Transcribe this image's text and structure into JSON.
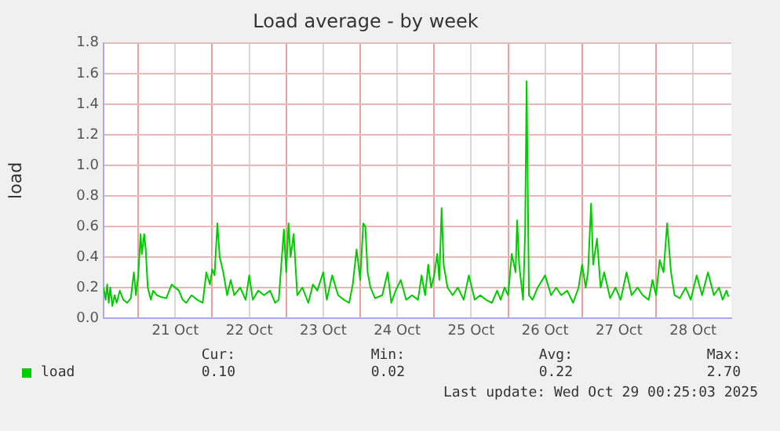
{
  "chart_data": {
    "type": "line",
    "title": "Load average - by week",
    "ylabel": "load",
    "x": [
      "2025-10-20T12:45",
      "2025-10-20T13:25",
      "2025-10-20T13:55",
      "2025-10-20T14:25",
      "2025-10-20T14:55",
      "2025-10-20T15:35",
      "2025-10-20T16:20",
      "2025-10-20T17:00",
      "2025-10-20T18:00",
      "2025-10-20T19:10",
      "2025-10-20T20:25",
      "2025-10-20T21:35",
      "2025-10-20T22:35",
      "2025-10-20T23:15",
      "2025-10-21T00:00",
      "2025-10-21T00:45",
      "2025-10-21T01:10",
      "2025-10-21T01:55",
      "2025-10-21T02:25",
      "2025-10-21T03:05",
      "2025-10-21T04:05",
      "2025-10-21T04:50",
      "2025-10-21T06:00",
      "2025-10-21T07:10",
      "2025-10-21T09:05",
      "2025-10-21T10:50",
      "2025-10-21T13:10",
      "2025-10-21T14:25",
      "2025-10-21T15:35",
      "2025-10-21T17:15",
      "2025-10-21T19:10",
      "2025-10-21T20:55",
      "2025-10-21T22:05",
      "2025-10-21T23:15",
      "2025-10-22T00:00",
      "2025-10-22T00:45",
      "2025-10-22T01:40",
      "2025-10-22T02:25",
      "2025-10-22T03:35",
      "2025-10-22T04:50",
      "2025-10-22T06:00",
      "2025-10-22T07:10",
      "2025-10-22T09:05",
      "2025-10-22T10:50",
      "2025-10-22T12:00",
      "2025-10-22T13:10",
      "2025-10-22T14:55",
      "2025-10-22T16:50",
      "2025-10-22T18:45",
      "2025-10-22T20:25",
      "2025-10-22T21:35",
      "2025-10-22T22:35",
      "2025-10-22T23:15",
      "2025-10-23T00:00",
      "2025-10-23T00:45",
      "2025-10-23T01:25",
      "2025-10-23T02:25",
      "2025-10-23T03:35",
      "2025-10-23T05:15",
      "2025-10-23T07:10",
      "2025-10-23T08:40",
      "2025-10-23T10:05",
      "2025-10-23T12:00",
      "2025-10-23T13:10",
      "2025-10-23T14:55",
      "2025-10-23T16:50",
      "2025-10-23T18:45",
      "2025-10-23T20:25",
      "2025-10-23T21:35",
      "2025-10-23T22:50",
      "2025-10-24T00:00",
      "2025-10-24T01:00",
      "2025-10-24T01:40",
      "2025-10-24T02:25",
      "2025-10-24T03:20",
      "2025-10-24T04:50",
      "2025-10-24T07:10",
      "2025-10-24T08:55",
      "2025-10-24T10:05",
      "2025-10-24T11:30",
      "2025-10-24T13:10",
      "2025-10-24T14:55",
      "2025-10-24T16:50",
      "2025-10-24T18:45",
      "2025-10-24T19:55",
      "2025-10-24T21:05",
      "2025-10-24T22:05",
      "2025-10-24T23:00",
      "2025-10-25T00:00",
      "2025-10-25T01:00",
      "2025-10-25T01:40",
      "2025-10-25T02:25",
      "2025-10-25T03:05",
      "2025-10-25T04:20",
      "2025-10-25T06:00",
      "2025-10-25T07:40",
      "2025-10-25T09:35",
      "2025-10-25T11:15",
      "2025-10-25T13:10",
      "2025-10-25T14:55",
      "2025-10-25T16:50",
      "2025-10-25T18:45",
      "2025-10-25T20:25",
      "2025-10-25T21:35",
      "2025-10-25T22:50",
      "2025-10-26T00:00",
      "2025-10-26T01:10",
      "2025-10-26T02:25",
      "2025-10-26T02:55",
      "2025-10-26T03:35",
      "2025-10-26T04:50",
      "2025-10-26T05:30",
      "2025-10-26T06:00",
      "2025-10-26T06:45",
      "2025-10-26T07:55",
      "2025-10-26T09:35",
      "2025-10-26T12:00",
      "2025-10-26T13:55",
      "2025-10-26T15:35",
      "2025-10-26T17:15",
      "2025-10-26T19:10",
      "2025-10-26T21:05",
      "2025-10-26T22:50",
      "2025-10-27T00:00",
      "2025-10-27T01:10",
      "2025-10-27T01:55",
      "2025-10-27T02:55",
      "2025-10-27T03:35",
      "2025-10-27T04:50",
      "2025-10-27T06:00",
      "2025-10-27T07:10",
      "2025-10-27T09:05",
      "2025-10-27T10:50",
      "2025-10-27T12:30",
      "2025-10-27T14:25",
      "2025-10-27T16:05",
      "2025-10-27T18:00",
      "2025-10-27T19:40",
      "2025-10-27T21:35",
      "2025-10-27T22:50",
      "2025-10-28T00:00",
      "2025-10-28T01:10",
      "2025-10-28T02:25",
      "2025-10-28T03:35",
      "2025-10-28T04:50",
      "2025-10-28T06:00",
      "2025-10-28T07:40",
      "2025-10-28T09:35",
      "2025-10-28T11:15",
      "2025-10-28T13:10",
      "2025-10-28T14:55",
      "2025-10-28T16:50",
      "2025-10-28T18:45",
      "2025-10-28T20:25",
      "2025-10-28T21:35",
      "2025-10-28T22:50",
      "2025-10-28T23:30"
    ],
    "series": [
      {
        "name": "load",
        "color": "#00cc00",
        "values": [
          0.2,
          0.12,
          0.22,
          0.1,
          0.2,
          0.08,
          0.15,
          0.1,
          0.18,
          0.12,
          0.1,
          0.13,
          0.3,
          0.15,
          0.28,
          0.55,
          0.42,
          0.55,
          0.45,
          0.2,
          0.12,
          0.18,
          0.15,
          0.14,
          0.13,
          0.22,
          0.18,
          0.12,
          0.1,
          0.15,
          0.12,
          0.1,
          0.3,
          0.22,
          0.32,
          0.28,
          0.62,
          0.4,
          0.3,
          0.15,
          0.25,
          0.15,
          0.2,
          0.12,
          0.28,
          0.12,
          0.18,
          0.15,
          0.18,
          0.1,
          0.12,
          0.4,
          0.58,
          0.3,
          0.62,
          0.4,
          0.55,
          0.15,
          0.2,
          0.1,
          0.22,
          0.18,
          0.3,
          0.12,
          0.28,
          0.15,
          0.12,
          0.1,
          0.22,
          0.45,
          0.25,
          0.62,
          0.6,
          0.3,
          0.2,
          0.13,
          0.15,
          0.3,
          0.1,
          0.18,
          0.25,
          0.12,
          0.15,
          0.12,
          0.28,
          0.15,
          0.35,
          0.2,
          0.28,
          0.42,
          0.25,
          0.72,
          0.35,
          0.2,
          0.15,
          0.2,
          0.12,
          0.28,
          0.12,
          0.15,
          0.12,
          0.1,
          0.18,
          0.12,
          0.2,
          0.15,
          0.42,
          0.3,
          0.64,
          0.35,
          0.12,
          0.55,
          1.55,
          0.15,
          0.12,
          0.2,
          0.28,
          0.15,
          0.2,
          0.15,
          0.18,
          0.1,
          0.2,
          0.35,
          0.2,
          0.3,
          0.75,
          0.35,
          0.52,
          0.2,
          0.3,
          0.13,
          0.2,
          0.12,
          0.3,
          0.15,
          0.2,
          0.15,
          0.12,
          0.25,
          0.15,
          0.38,
          0.3,
          0.62,
          0.3,
          0.15,
          0.13,
          0.2,
          0.12,
          0.28,
          0.15,
          0.3,
          0.15,
          0.2,
          0.12,
          0.18,
          0.14
        ]
      }
    ],
    "xlim": [
      "2025-10-20T12:45",
      "2025-10-29T00:25"
    ],
    "xticks": [
      {
        "value": "2025-10-21T00:00",
        "label": null
      },
      {
        "value": "2025-10-21T12:00",
        "label": "21 Oct"
      },
      {
        "value": "2025-10-22T00:00",
        "label": null
      },
      {
        "value": "2025-10-22T12:00",
        "label": "22 Oct"
      },
      {
        "value": "2025-10-23T00:00",
        "label": null
      },
      {
        "value": "2025-10-23T12:00",
        "label": "23 Oct"
      },
      {
        "value": "2025-10-24T00:00",
        "label": null
      },
      {
        "value": "2025-10-24T12:00",
        "label": "24 Oct"
      },
      {
        "value": "2025-10-25T00:00",
        "label": null
      },
      {
        "value": "2025-10-25T12:00",
        "label": "25 Oct"
      },
      {
        "value": "2025-10-26T00:00",
        "label": null
      },
      {
        "value": "2025-10-26T12:00",
        "label": "26 Oct"
      },
      {
        "value": "2025-10-27T00:00",
        "label": null
      },
      {
        "value": "2025-10-27T12:00",
        "label": "27 Oct"
      },
      {
        "value": "2025-10-28T00:00",
        "label": null
      },
      {
        "value": "2025-10-28T12:00",
        "label": "28 Oct"
      }
    ],
    "ylim": [
      0,
      1.8
    ],
    "yticks": [
      {
        "value": 0,
        "label": "0.0"
      },
      {
        "value": 0.2,
        "label": "0.2"
      },
      {
        "value": 0.4,
        "label": "0.4"
      },
      {
        "value": 0.6,
        "label": "0.6"
      },
      {
        "value": 0.8,
        "label": "0.8"
      },
      {
        "value": 1,
        "label": "1.0"
      },
      {
        "value": 1.2,
        "label": "1.2"
      },
      {
        "value": 1.4,
        "label": "1.4"
      },
      {
        "value": 1.6,
        "label": "1.6"
      },
      {
        "value": 1.8,
        "label": "1.8"
      }
    ],
    "grid": true,
    "legend": "bottom",
    "marker": "none",
    "line_style": "solid",
    "annotations": [
      "Cur:",
      "Min:",
      "Avg:",
      "Max:",
      "0.10",
      "0.02",
      "0.22",
      "2.70",
      "Last update: Wed Oct 29 00:25:03 2025"
    ]
  }
}
